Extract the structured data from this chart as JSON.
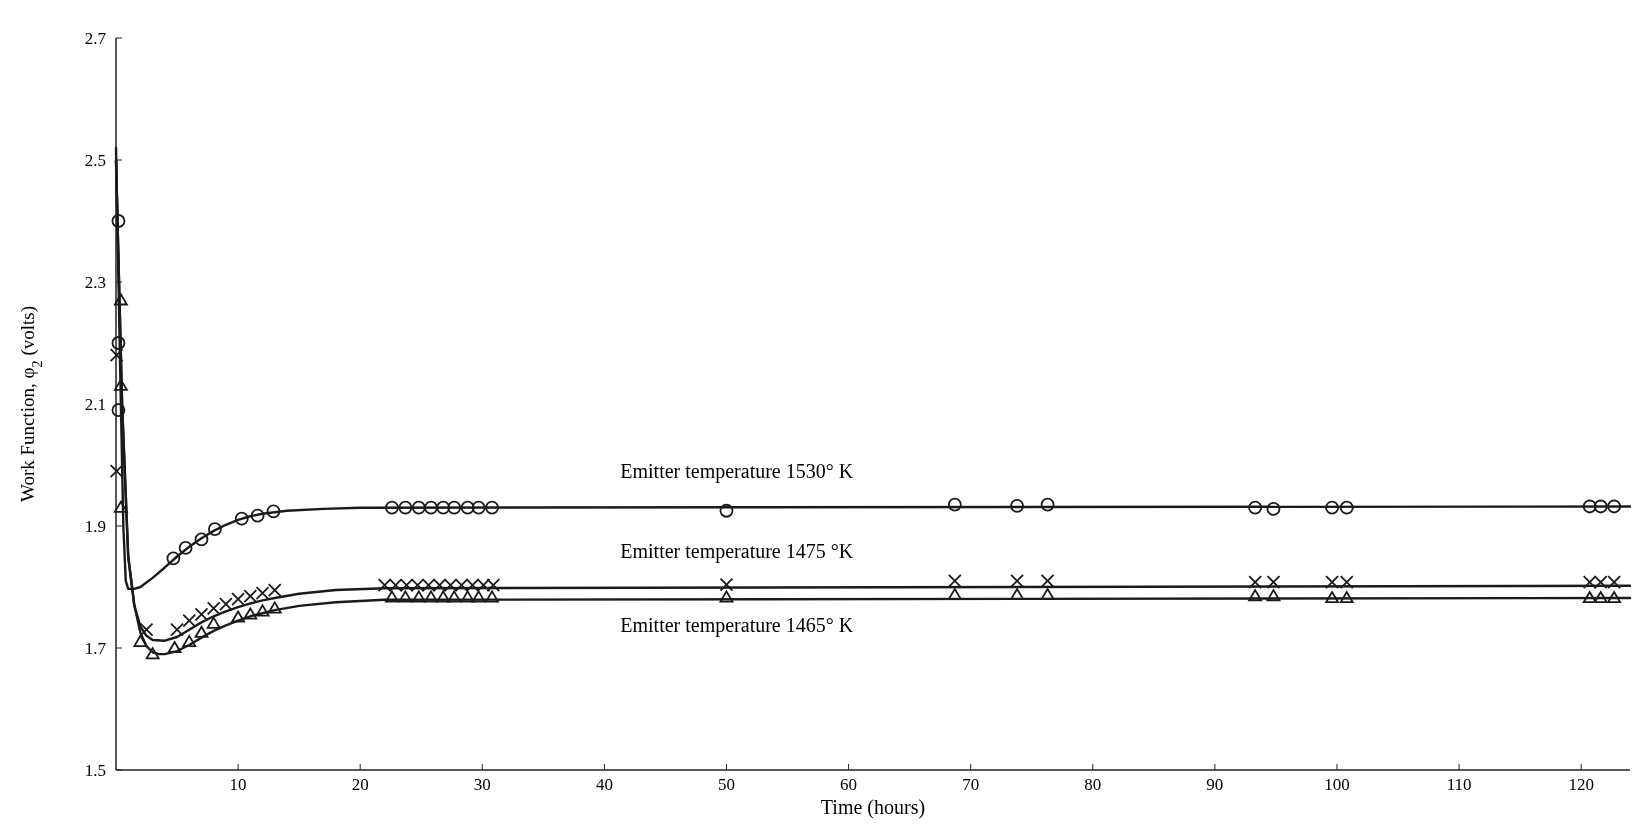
{
  "chart_data": {
    "type": "scatter",
    "xlabel": "Time (hours)",
    "ylabel": "Work Function, φ$_{2}$ (volts)",
    "xlim": [
      0,
      124
    ],
    "ylim": [
      1.5,
      2.7
    ],
    "xticks": [
      10,
      20,
      30,
      40,
      50,
      60,
      70,
      80,
      90,
      100,
      110,
      120
    ],
    "yticks": [
      1.5,
      1.7,
      1.9,
      2.1,
      2.3,
      2.5,
      2.7
    ],
    "grid": false,
    "series": [
      {
        "marker": "circle",
        "color": "#1a1a1a",
        "x": [
          0.2,
          0.2,
          0.2,
          4.7,
          5.7,
          7.0,
          8.1,
          10.3,
          11.6,
          12.9,
          22.6,
          23.7,
          24.8,
          25.8,
          26.8,
          27.7,
          28.8,
          29.7,
          30.8,
          50.0,
          68.7,
          73.8,
          76.3,
          93.3,
          94.8,
          99.6,
          100.8,
          120.7,
          121.6,
          122.7
        ],
        "values": [
          2.4,
          2.2,
          2.09,
          1.847,
          1.864,
          1.878,
          1.895,
          1.912,
          1.917,
          1.924,
          1.93,
          1.93,
          1.93,
          1.93,
          1.93,
          1.93,
          1.93,
          1.93,
          1.93,
          1.925,
          1.935,
          1.933,
          1.935,
          1.93,
          1.928,
          1.93,
          1.93,
          1.932,
          1.932,
          1.932
        ]
      },
      {
        "marker": "cross",
        "color": "#1a1a1a",
        "x": [
          0.05,
          0.05,
          2.5,
          5,
          6,
          7,
          8,
          9,
          10,
          11,
          12,
          13,
          22.0,
          22.9,
          23.8,
          24.7,
          25.6,
          26.5,
          27.4,
          28.3,
          29.2,
          30.1,
          30.9,
          50.0,
          68.7,
          73.8,
          76.3,
          93.3,
          94.8,
          99.6,
          100.8,
          120.7,
          121.6,
          122.7
        ],
        "values": [
          2.18,
          1.99,
          1.73,
          1.73,
          1.745,
          1.755,
          1.765,
          1.772,
          1.78,
          1.785,
          1.79,
          1.795,
          1.803,
          1.803,
          1.803,
          1.803,
          1.803,
          1.803,
          1.803,
          1.803,
          1.803,
          1.803,
          1.803,
          1.804,
          1.81,
          1.81,
          1.81,
          1.808,
          1.808,
          1.808,
          1.808,
          1.808,
          1.808,
          1.808
        ]
      },
      {
        "marker": "triangle",
        "color": "#1a1a1a",
        "x": [
          0.4,
          0.4,
          0.4,
          2.0,
          3.0,
          4.8,
          6,
          7,
          8,
          10,
          11,
          12,
          13,
          22.6,
          23.7,
          24.8,
          25.8,
          26.8,
          27.7,
          28.8,
          29.7,
          30.8,
          50.0,
          68.7,
          73.8,
          76.3,
          93.3,
          94.8,
          99.6,
          100.8,
          120.7,
          121.6,
          122.7
        ],
        "values": [
          2.27,
          2.13,
          1.93,
          1.71,
          1.69,
          1.7,
          1.71,
          1.725,
          1.74,
          1.75,
          1.755,
          1.76,
          1.765,
          1.783,
          1.783,
          1.783,
          1.783,
          1.783,
          1.783,
          1.783,
          1.783,
          1.783,
          1.783,
          1.787,
          1.787,
          1.787,
          1.785,
          1.785,
          1.782,
          1.782,
          1.782,
          1.782,
          1.782
        ]
      },
      {
        "type": "line",
        "name": "Emitter temperature 1530° K",
        "marker": "none",
        "line_style": "solid",
        "color": "#1a1a1a",
        "x": [
          0,
          0.3,
          0.6,
          0.8,
          1,
          1.5,
          2,
          3,
          4,
          5,
          6,
          7,
          8,
          9,
          10,
          11,
          12,
          14,
          17,
          20,
          124
        ],
        "values": [
          2.52,
          2.2,
          1.9,
          1.81,
          1.797,
          1.797,
          1.8,
          1.815,
          1.832,
          1.85,
          1.866,
          1.88,
          1.892,
          1.902,
          1.91,
          1.916,
          1.92,
          1.925,
          1.928,
          1.93,
          1.932
        ]
      },
      {
        "type": "line",
        "name": "Emitter temperature 1475 °K",
        "marker": "none",
        "line_style": "solid",
        "color": "#1a1a1a",
        "x": [
          0,
          0.5,
          1,
          1.5,
          2,
          2.5,
          3,
          4,
          5,
          6,
          7,
          8,
          9,
          10,
          11,
          12,
          13,
          15,
          18,
          22,
          124
        ],
        "values": [
          2.5,
          2.1,
          1.85,
          1.77,
          1.735,
          1.72,
          1.713,
          1.712,
          1.718,
          1.73,
          1.742,
          1.752,
          1.76,
          1.767,
          1.773,
          1.778,
          1.782,
          1.789,
          1.795,
          1.798,
          1.802
        ]
      },
      {
        "type": "line",
        "name": "Emitter temperature 1465° K",
        "marker": "none",
        "line_style": "solid",
        "color": "#1a1a1a",
        "x": [
          0,
          0.5,
          1,
          1.5,
          2,
          2.5,
          3,
          3.5,
          4,
          5,
          6,
          7,
          8,
          9,
          10,
          11,
          12,
          13,
          15,
          18,
          22,
          124
        ],
        "values": [
          2.5,
          2.1,
          1.85,
          1.77,
          1.725,
          1.703,
          1.693,
          1.69,
          1.69,
          1.695,
          1.705,
          1.717,
          1.728,
          1.737,
          1.745,
          1.752,
          1.757,
          1.762,
          1.769,
          1.775,
          1.779,
          1.782
        ]
      }
    ]
  }
}
